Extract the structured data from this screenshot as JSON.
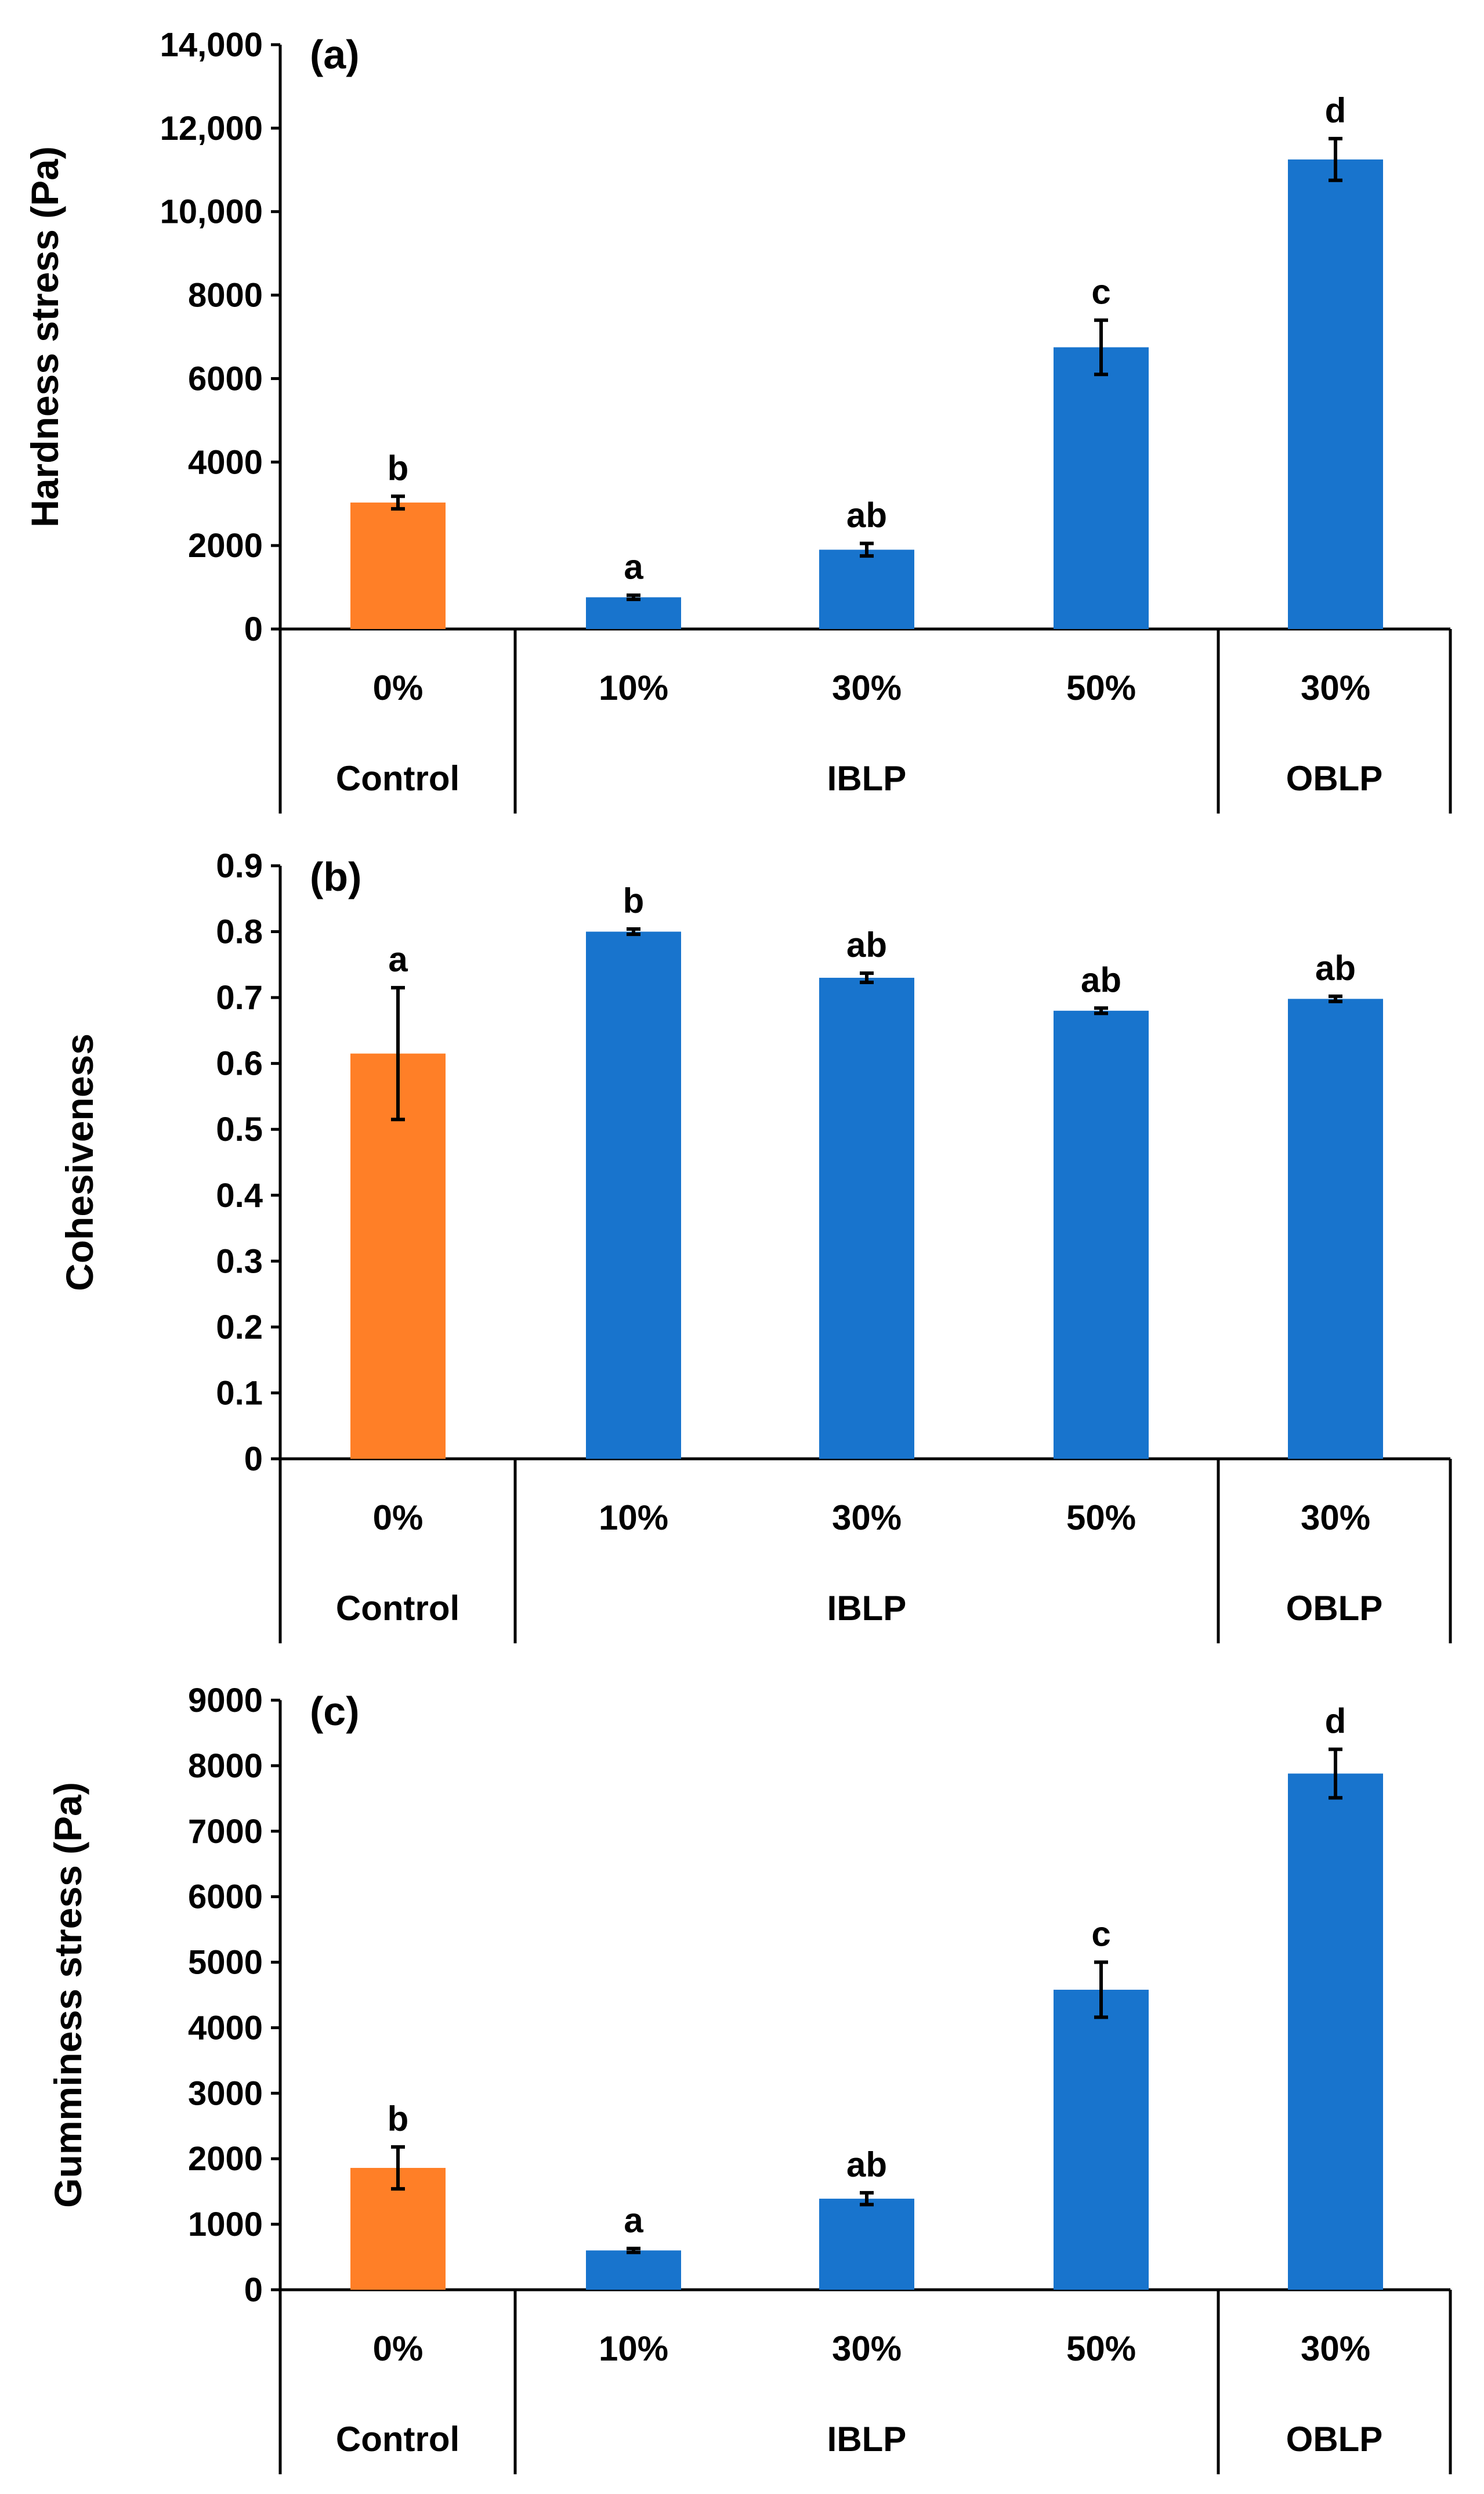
{
  "colors": {
    "control": "#FF7F27",
    "treatment": "#1874CD",
    "axis": "#000000",
    "error_bar": "#000000"
  },
  "chart_data": [
    {
      "id": "a",
      "type": "bar",
      "panel_label": "(a)",
      "ylabel": "Hardness stress (Pa)",
      "ylim": [
        0,
        14000
      ],
      "yticks": [
        0,
        2000,
        4000,
        6000,
        8000,
        10000,
        12000,
        14000
      ],
      "ytick_labels": [
        "0",
        "2000",
        "4000",
        "6000",
        "8000",
        "10,000",
        "12,000",
        "14,000"
      ],
      "categories": [
        "0%",
        "10%",
        "30%",
        "50%",
        "30%"
      ],
      "groups": [
        {
          "label": "Control",
          "span": [
            0,
            0
          ]
        },
        {
          "label": "IBLP",
          "span": [
            1,
            3
          ]
        },
        {
          "label": "OBLP",
          "span": [
            4,
            4
          ]
        }
      ],
      "values": [
        3030,
        760,
        1900,
        6750,
        11250
      ],
      "errors": [
        150,
        50,
        150,
        650,
        500
      ],
      "significance": [
        "b",
        "a",
        "ab",
        "c",
        "d"
      ],
      "bar_colors": [
        "control",
        "treatment",
        "treatment",
        "treatment",
        "treatment"
      ]
    },
    {
      "id": "b",
      "type": "bar",
      "panel_label": "(b)",
      "ylabel": "Cohesiveness",
      "ylim": [
        0,
        0.9
      ],
      "yticks": [
        0,
        0.1,
        0.2,
        0.3,
        0.4,
        0.5,
        0.6,
        0.7,
        0.8,
        0.9
      ],
      "ytick_labels": [
        "0",
        "0.1",
        "0.2",
        "0.3",
        "0.4",
        "0.5",
        "0.6",
        "0.7",
        "0.8",
        "0.9"
      ],
      "categories": [
        "0%",
        "10%",
        "30%",
        "50%",
        "30%"
      ],
      "groups": [
        {
          "label": "Control",
          "span": [
            0,
            0
          ]
        },
        {
          "label": "IBLP",
          "span": [
            1,
            3
          ]
        },
        {
          "label": "OBLP",
          "span": [
            4,
            4
          ]
        }
      ],
      "values": [
        0.615,
        0.8,
        0.73,
        0.68,
        0.698
      ],
      "errors": [
        0.1,
        0.004,
        0.007,
        0.004,
        0.004
      ],
      "significance": [
        "a",
        "b",
        "ab",
        "ab",
        "ab"
      ],
      "bar_colors": [
        "control",
        "treatment",
        "treatment",
        "treatment",
        "treatment"
      ]
    },
    {
      "id": "c",
      "type": "bar",
      "panel_label": "(c)",
      "ylabel": "Gumminess stress (Pa)",
      "ylim": [
        0,
        9000
      ],
      "yticks": [
        0,
        1000,
        2000,
        3000,
        4000,
        5000,
        6000,
        7000,
        8000,
        9000
      ],
      "ytick_labels": [
        "0",
        "1000",
        "2000",
        "3000",
        "4000",
        "5000",
        "6000",
        "7000",
        "8000",
        "9000"
      ],
      "categories": [
        "0%",
        "10%",
        "30%",
        "50%",
        "30%"
      ],
      "groups": [
        {
          "label": "Control",
          "span": [
            0,
            0
          ]
        },
        {
          "label": "IBLP",
          "span": [
            1,
            3
          ]
        },
        {
          "label": "OBLP",
          "span": [
            4,
            4
          ]
        }
      ],
      "values": [
        1860,
        600,
        1390,
        4580,
        7880
      ],
      "errors": [
        320,
        30,
        90,
        420,
        370
      ],
      "significance": [
        "b",
        "a",
        "ab",
        "c",
        "d"
      ],
      "bar_colors": [
        "control",
        "treatment",
        "treatment",
        "treatment",
        "treatment"
      ]
    }
  ]
}
